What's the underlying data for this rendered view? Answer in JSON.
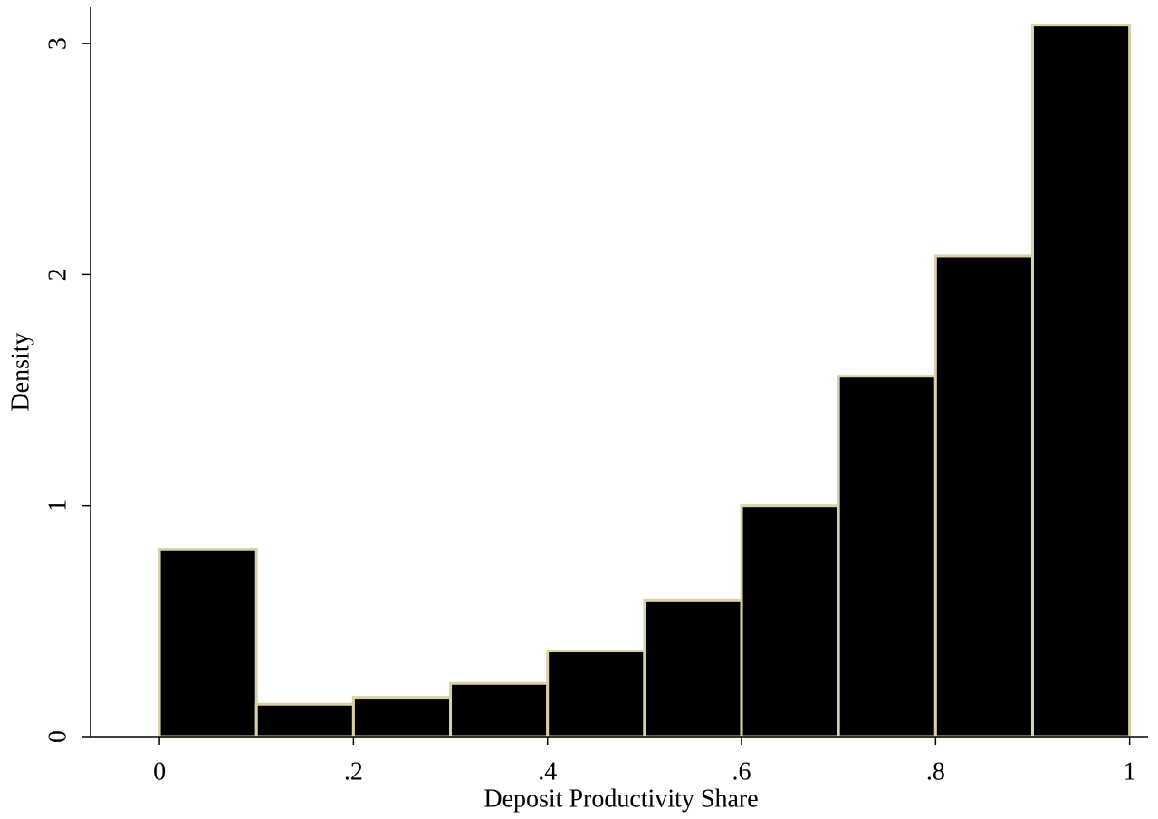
{
  "chart_data": {
    "type": "histogram",
    "x_label": "Deposit Productivity Share",
    "y_label": "Density",
    "bins": [
      0,
      0.1,
      0.2,
      0.3,
      0.4,
      0.5,
      0.6,
      0.7,
      0.8,
      0.9,
      1.0
    ],
    "values": [
      0.81,
      0.14,
      0.17,
      0.23,
      0.37,
      0.59,
      1.0,
      1.56,
      2.08,
      3.08
    ],
    "color": "#000000",
    "edge_color": "#d8d2a6",
    "xlim": [
      -0.071,
      1.019
    ],
    "ylim": [
      0,
      3.157
    ],
    "xticks": [
      0,
      {
        "value": 0.2,
        "label": ".2"
      },
      {
        "value": 0.4,
        "label": ".4"
      },
      {
        "value": 0.6,
        "label": ".6"
      },
      {
        "value": 0.8,
        "label": ".8"
      },
      1
    ],
    "yticks": [
      0,
      1,
      2,
      3
    ],
    "grid": false
  }
}
